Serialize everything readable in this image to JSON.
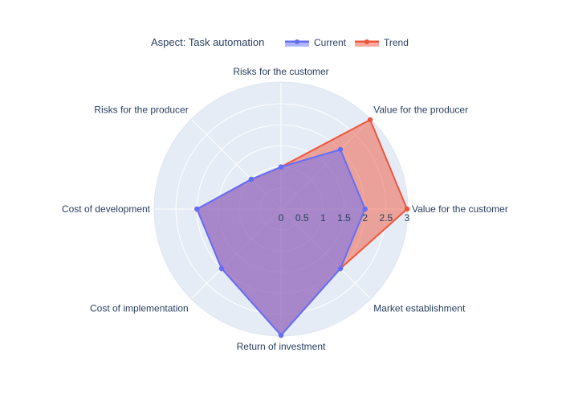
{
  "chart_data": {
    "type": "radar",
    "legend_title": "Aspect: Task automation",
    "legend_position": "top",
    "categories": [
      "Value for the customer",
      "Value for the producer",
      "Risks for the customer",
      "Risks for the producer",
      "Cost of development",
      "Cost of implementation",
      "Return of investment",
      "Market establishment"
    ],
    "radial_ticks": [
      "0",
      "0.5",
      "1",
      "1.5",
      "2",
      "2.5",
      "3"
    ],
    "radial_range": [
      0,
      3
    ],
    "series": [
      {
        "name": "Current",
        "color": "#636efa",
        "values": [
          2,
          2,
          1,
          1,
          2,
          2,
          3,
          2
        ]
      },
      {
        "name": "Trend",
        "color": "#ef553b",
        "values": [
          3,
          3,
          1,
          1,
          2,
          2,
          3,
          2
        ]
      }
    ],
    "background_color": "#e5ecf6",
    "grid_color": "#ffffff"
  }
}
